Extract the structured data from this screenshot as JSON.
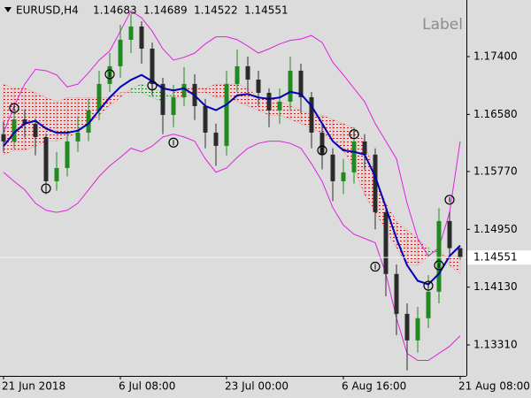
{
  "chart_data": {
    "type": "candlestick",
    "symbol": "EURUSD,H4",
    "label": "Label",
    "categories": [
      "21 Jun 2018",
      null,
      null,
      null,
      null,
      null,
      null,
      null,
      null,
      null,
      null,
      "6 Jul 08:00",
      null,
      null,
      null,
      null,
      null,
      null,
      null,
      null,
      null,
      "23 Jul 00:00",
      null,
      null,
      null,
      null,
      null,
      null,
      null,
      null,
      null,
      null,
      "6 Aug 16:00",
      null,
      null,
      null,
      null,
      null,
      null,
      null,
      null,
      null,
      null,
      "21 Aug 08:00"
    ],
    "open": [
      1.163,
      1.16197,
      1.1651,
      1.16447,
      1.16259,
      1.15632,
      1.1582,
      1.16197,
      1.16322,
      1.16636,
      1.17012,
      1.17263,
      1.17639,
      1.17827,
      1.17513,
      1.17012,
      1.16573,
      1.16824,
      1.17012,
      1.16698,
      1.16322,
      1.16134,
      1.17012,
      1.17263,
      1.17074,
      1.16886,
      1.16636,
      1.16761,
      1.172,
      1.16824,
      1.16322,
      1.16009,
      1.15632,
      1.15758,
      1.16197,
      1.16009,
      1.15193,
      1.14316,
      1.13751,
      1.13375,
      1.13689,
      1.14065,
      1.15068,
      1.14683
    ],
    "high": [
      1.1648,
      1.1672,
      1.1665,
      1.1652,
      1.163,
      1.1605,
      1.1635,
      1.1655,
      1.168,
      1.172,
      1.1745,
      1.1785,
      1.18,
      1.179,
      1.176,
      1.171,
      1.17,
      1.1725,
      1.1715,
      1.168,
      1.1645,
      1.172,
      1.175,
      1.174,
      1.172,
      1.1695,
      1.1695,
      1.174,
      1.173,
      1.169,
      1.1645,
      1.161,
      1.1595,
      1.164,
      1.163,
      1.161,
      1.153,
      1.1445,
      1.139,
      1.1385,
      1.143,
      1.1525,
      1.152,
      1.14689
    ],
    "low": [
      1.1605,
      1.161,
      1.1625,
      1.16,
      1.1545,
      1.155,
      1.157,
      1.1605,
      1.162,
      1.165,
      1.169,
      1.171,
      1.1745,
      1.173,
      1.1685,
      1.163,
      1.164,
      1.167,
      1.165,
      1.161,
      1.1585,
      1.16,
      1.169,
      1.169,
      1.167,
      1.164,
      1.1645,
      1.1665,
      1.166,
      1.161,
      1.158,
      1.1535,
      1.1545,
      1.156,
      1.158,
      1.1495,
      1.14,
      1.1345,
      1.1295,
      1.132,
      1.1355,
      1.139,
      1.1455,
      1.14522
    ],
    "close": [
      1.16197,
      1.1651,
      1.16447,
      1.16259,
      1.15632,
      1.1582,
      1.16197,
      1.16322,
      1.16636,
      1.17012,
      1.17263,
      1.17639,
      1.17827,
      1.17513,
      1.17012,
      1.16573,
      1.16824,
      1.17012,
      1.16698,
      1.16322,
      1.16134,
      1.17012,
      1.17263,
      1.17074,
      1.16886,
      1.16636,
      1.16761,
      1.172,
      1.16824,
      1.16322,
      1.16009,
      1.15632,
      1.15758,
      1.16197,
      1.16009,
      1.15193,
      1.14316,
      1.13751,
      1.13375,
      1.13689,
      1.14065,
      1.15068,
      1.14683,
      1.14551
    ],
    "up_color": "#1f8a1f",
    "down_color": "#2b2b2b",
    "ma": {
      "color": "#0000b4",
      "values": [
        1.1613,
        1.1632,
        1.1645,
        1.1649,
        1.1638,
        1.1632,
        1.1632,
        1.1635,
        1.1645,
        1.1664,
        1.1682,
        1.1697,
        1.1707,
        1.1714,
        1.1705,
        1.1695,
        1.1692,
        1.1695,
        1.1685,
        1.167,
        1.1664,
        1.1672,
        1.1685,
        1.1687,
        1.1682,
        1.168,
        1.1682,
        1.169,
        1.1687,
        1.167,
        1.1645,
        1.162,
        1.1607,
        1.1605,
        1.1601,
        1.157,
        1.1526,
        1.1482,
        1.1444,
        1.1422,
        1.1417,
        1.1432,
        1.1457,
        1.1472
      ]
    },
    "bands": {
      "color": "#e020e0",
      "upper": [
        1.1632,
        1.167,
        1.1701,
        1.1722,
        1.172,
        1.1714,
        1.1697,
        1.1701,
        1.1717,
        1.1735,
        1.1748,
        1.1776,
        1.1805,
        1.1795,
        1.1776,
        1.1751,
        1.1735,
        1.1739,
        1.1745,
        1.1758,
        1.1768,
        1.1768,
        1.1764,
        1.1755,
        1.1745,
        1.1751,
        1.1758,
        1.1763,
        1.1765,
        1.177,
        1.176,
        1.1732,
        1.1714,
        1.1695,
        1.1676,
        1.1645,
        1.162,
        1.1595,
        1.1532,
        1.1482,
        1.1457,
        1.1469,
        1.1519,
        1.162
      ],
      "lower": [
        1.1576,
        1.1563,
        1.1551,
        1.1532,
        1.1522,
        1.1519,
        1.1522,
        1.1532,
        1.1551,
        1.157,
        1.1585,
        1.1597,
        1.161,
        1.1605,
        1.1613,
        1.1626,
        1.163,
        1.1626,
        1.162,
        1.1595,
        1.1576,
        1.1582,
        1.1597,
        1.161,
        1.1617,
        1.162,
        1.162,
        1.1617,
        1.161,
        1.1588,
        1.1563,
        1.1526,
        1.1501,
        1.1488,
        1.1482,
        1.1476,
        1.1432,
        1.1369,
        1.1319,
        1.1309,
        1.1309,
        1.1319,
        1.1329,
        1.1344
      ]
    },
    "cloud": {
      "up_color": "#1f8a1f",
      "down_color": "#cc2020",
      "span_a": [
        1.1601,
        1.1607,
        1.1607,
        1.1613,
        1.162,
        1.162,
        1.1626,
        1.1632,
        1.1645,
        1.1657,
        1.167,
        1.1682,
        1.1695,
        1.1701,
        1.1695,
        1.1689,
        1.1682,
        1.1682,
        1.1689,
        1.1689,
        1.1682,
        1.1682,
        1.1676,
        1.167,
        1.1664,
        1.1657,
        1.1657,
        1.1651,
        1.1645,
        1.1638,
        1.1632,
        1.162,
        1.1607,
        1.1582,
        1.1544,
        1.1519,
        1.1494,
        1.1469,
        1.1444,
        1.1444,
        1.1457,
        1.1469,
        1.1444,
        1.1432
      ],
      "span_b": [
        1.1701,
        1.1695,
        1.1695,
        1.1689,
        1.1682,
        1.1676,
        1.1682,
        1.1682,
        1.1682,
        1.1682,
        1.1682,
        1.1689,
        1.1689,
        1.1689,
        1.1682,
        1.1676,
        1.1689,
        1.1695,
        1.1695,
        1.1695,
        1.1701,
        1.1701,
        1.1701,
        1.1695,
        1.1682,
        1.1682,
        1.1676,
        1.167,
        1.1664,
        1.1657,
        1.1657,
        1.1651,
        1.1645,
        1.1638,
        1.162,
        1.157,
        1.1532,
        1.1507,
        1.1494,
        1.1482,
        1.1469,
        1.1457,
        1.1457,
        1.1457
      ]
    },
    "fractals": {
      "index": [
        1,
        4,
        10,
        14,
        16,
        30,
        33,
        35,
        40,
        41,
        42
      ],
      "values": [
        1.1667,
        1.1553,
        1.1715,
        1.1699,
        1.1618,
        1.1607,
        1.163,
        1.1442,
        1.1415,
        1.1444,
        1.1537
      ]
    },
    "ylim": [
      1.12871,
      1.18203
    ],
    "yticks": [
      {
        "value": 1.174,
        "label": "1.17400"
      },
      {
        "value": 1.1658,
        "label": "1.16580"
      },
      {
        "value": 1.1577,
        "label": "1.15770"
      },
      {
        "value": 1.1495,
        "label": "1.14950"
      },
      {
        "value": 1.1413,
        "label": "1.14130"
      },
      {
        "value": 1.1331,
        "label": "1.13310"
      }
    ]
  }
}
